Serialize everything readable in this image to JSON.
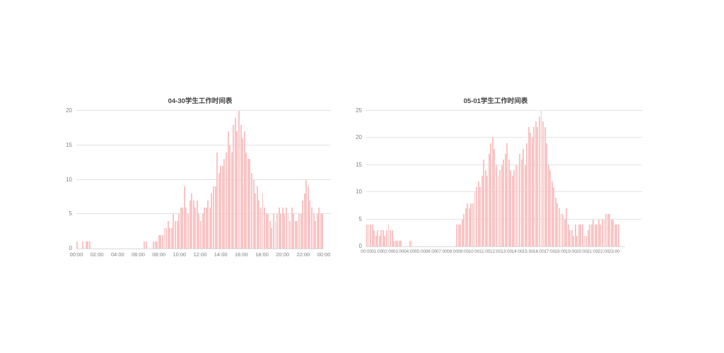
{
  "style": {
    "background": "#ffffff",
    "bar_color": "#f9c4c5",
    "grid_color": "#e3e3e3",
    "axis_color": "#d9d9d9",
    "tick_color": "#808080",
    "title_color": "#444444"
  },
  "chart_data": [
    {
      "type": "bar",
      "title": "04-30学生工作时间表",
      "bin_minutes": 10,
      "xlabel": "",
      "ylabel": "",
      "ylim": [
        0,
        20
      ],
      "y_ticks": [
        0,
        5,
        10,
        15,
        20
      ],
      "grid": true,
      "legend": false,
      "bar_color": "#f9c4c5",
      "x_ticks": [
        {
          "hour": 0,
          "label": "00:00"
        },
        {
          "hour": 2,
          "label": "02:00"
        },
        {
          "hour": 4,
          "label": "04:00"
        },
        {
          "hour": 6,
          "label": "06:00"
        },
        {
          "hour": 8,
          "label": "08:00"
        },
        {
          "hour": 10,
          "label": "10:00"
        },
        {
          "hour": 12,
          "label": "12:00"
        },
        {
          "hour": 14,
          "label": "14:00"
        },
        {
          "hour": 16,
          "label": "16:00"
        },
        {
          "hour": 18,
          "label": "18:00"
        },
        {
          "hour": 20,
          "label": "20:00"
        },
        {
          "hour": 22,
          "label": "22:00"
        },
        {
          "hour": 24,
          "label": "00:00"
        }
      ],
      "values": [
        1,
        0,
        0,
        1,
        0,
        1,
        1,
        1,
        0,
        0,
        0,
        0,
        0,
        0,
        0,
        0,
        0,
        0,
        0,
        0,
        0,
        0,
        0,
        0,
        0,
        0,
        0,
        0,
        0,
        0,
        0,
        0,
        0,
        0,
        0,
        0,
        0,
        1,
        1,
        0,
        0,
        0,
        1,
        1,
        1,
        2,
        2,
        2,
        3,
        3,
        4,
        3,
        3,
        5,
        4,
        4,
        5,
        6,
        6,
        9,
        6,
        5,
        7,
        8,
        7,
        6,
        7,
        5,
        4,
        5,
        6,
        6,
        7,
        6,
        8,
        9,
        9,
        14,
        11,
        12,
        12,
        13,
        14,
        17,
        15,
        14,
        18,
        19,
        17,
        20,
        18,
        16,
        17,
        14,
        13,
        13,
        11,
        10,
        8,
        9,
        7,
        6,
        8,
        6,
        5,
        5,
        4,
        3,
        5,
        4,
        5,
        6,
        5,
        6,
        5,
        6,
        5,
        4,
        6,
        5,
        4,
        4,
        5,
        5,
        7,
        8,
        10,
        9,
        7,
        6,
        5,
        4,
        5,
        6,
        5,
        5
      ]
    },
    {
      "type": "bar",
      "title": "05-01学生工作时间表",
      "bin_minutes": 10,
      "xlabel": "",
      "ylabel": "",
      "ylim": [
        0,
        25
      ],
      "y_ticks": [
        0,
        5,
        10,
        15,
        20,
        25
      ],
      "grid": true,
      "legend": false,
      "bar_color": "#f9c4c5",
      "x_ticks": [
        {
          "hour": 0,
          "label": "00:00"
        },
        {
          "hour": 1,
          "label": "01:00"
        },
        {
          "hour": 2,
          "label": "02:00"
        },
        {
          "hour": 3,
          "label": "03:00"
        },
        {
          "hour": 4,
          "label": "04:00"
        },
        {
          "hour": 5,
          "label": "05:00"
        },
        {
          "hour": 6,
          "label": "06:00"
        },
        {
          "hour": 7,
          "label": "07:00"
        },
        {
          "hour": 8,
          "label": "08:00"
        },
        {
          "hour": 9,
          "label": "09:00"
        },
        {
          "hour": 10,
          "label": "10:00"
        },
        {
          "hour": 11,
          "label": "11:00"
        },
        {
          "hour": 12,
          "label": "12:00"
        },
        {
          "hour": 13,
          "label": "13:00"
        },
        {
          "hour": 14,
          "label": "14:00"
        },
        {
          "hour": 15,
          "label": "15:00"
        },
        {
          "hour": 16,
          "label": "16:00"
        },
        {
          "hour": 17,
          "label": "17:00"
        },
        {
          "hour": 18,
          "label": "18:00"
        },
        {
          "hour": 19,
          "label": "19:00"
        },
        {
          "hour": 20,
          "label": "20:00"
        },
        {
          "hour": 21,
          "label": "21:00"
        },
        {
          "hour": 22,
          "label": "22:00"
        },
        {
          "hour": 23,
          "label": "23:00"
        }
      ],
      "values": [
        4,
        4,
        4,
        4,
        3,
        2,
        3,
        2,
        3,
        3,
        2,
        3,
        4,
        3,
        3,
        1,
        1,
        1,
        1,
        1,
        0,
        0,
        0,
        0,
        1,
        1,
        0,
        0,
        0,
        0,
        0,
        0,
        0,
        0,
        0,
        0,
        0,
        0,
        0,
        0,
        0,
        0,
        0,
        0,
        0,
        0,
        0,
        0,
        0,
        0,
        4,
        4,
        4,
        5,
        6,
        7,
        8,
        7,
        8,
        8,
        10,
        11,
        12,
        11,
        13,
        16,
        14,
        13,
        17,
        19,
        20,
        18,
        15,
        13,
        14,
        15,
        16,
        17,
        19,
        16,
        14,
        13,
        14,
        15,
        15,
        17,
        16,
        18,
        15,
        19,
        22,
        21,
        20,
        22,
        23,
        22,
        24,
        25,
        23,
        22,
        19,
        15,
        14,
        12,
        11,
        9,
        8,
        7,
        6,
        6,
        5,
        7,
        4,
        3,
        3,
        2,
        4,
        2,
        4,
        4,
        4,
        2,
        2,
        3,
        4,
        4,
        5,
        4,
        4,
        5,
        4,
        5,
        5,
        6,
        6,
        6,
        5,
        5,
        4,
        4,
        4,
        0,
        0,
        0
      ]
    }
  ]
}
